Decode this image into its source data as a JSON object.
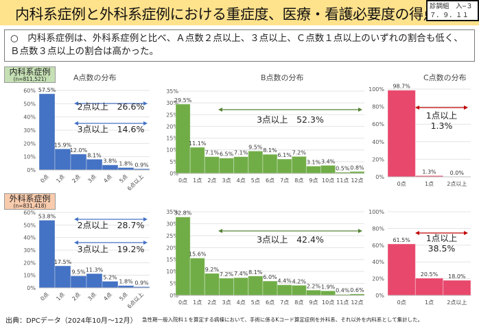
{
  "header": {
    "title": "内科系症例と外科系症例における重症度、医療・看護必要度の得点",
    "badge_line1": "診調組　入−３",
    "badge_line2": "７．９．１１"
  },
  "summary": "○　内科系症例は、外科系症例と比べ、Ａ点数２点以上、３点以上、Ｃ点数１点以上のいずれの割合も低く、Ｂ点数３点以上の割合は高かった。",
  "groups": [
    {
      "label": "内科系症例",
      "n": "(n=811,521)",
      "color": "#C5E0B4"
    },
    {
      "label": "外科系症例",
      "n": "(n=831,418)",
      "color": "#F8CBAD"
    }
  ],
  "footer": {
    "source": "出典：DPCデータ（2024年10月～12月）",
    "note": "急性期一般入院料１を算定する病棟において、手術に係るKコード算定症例を外科系、それ以外を内科系として集計した。"
  },
  "colors": {
    "A": "#4472C4",
    "B": "#70AD47",
    "C": "#E8486C",
    "B_arrow": "#548235",
    "C_arrow": "#C00000"
  },
  "chart_data": [
    {
      "id": "a1",
      "type": "bar",
      "title": "A点数の分布",
      "group": "内科系症例",
      "categories": [
        "0点",
        "1点",
        "2点",
        "3点",
        "4点",
        "5点",
        "6点以上"
      ],
      "values": [
        57.5,
        15.9,
        12.0,
        8.1,
        3.8,
        1.8,
        0.9
      ],
      "ylim": [
        0,
        60
      ],
      "ytick_step": 10,
      "color_key": "A",
      "annotations": [
        {
          "text": "2点以上　26.6%"
        },
        {
          "text": "3点以上　14.6%"
        }
      ]
    },
    {
      "id": "b1",
      "type": "bar",
      "title": "B点数の分布",
      "group": "内科系症例",
      "categories": [
        "0点",
        "1点",
        "2点",
        "3点",
        "4点",
        "5点",
        "6点",
        "7点",
        "8点",
        "9点",
        "10点",
        "11点",
        "12点"
      ],
      "values": [
        29.5,
        11.1,
        7.1,
        6.5,
        7.1,
        9.5,
        8.1,
        6.1,
        7.2,
        3.1,
        3.4,
        0.5,
        0.8
      ],
      "ylim": [
        0,
        35
      ],
      "ytick_step": 5,
      "color_key": "B",
      "annotations": [
        {
          "text": "3点以上　52.3%"
        }
      ]
    },
    {
      "id": "c1",
      "type": "bar",
      "title": "C点数の分布",
      "group": "内科系症例",
      "categories": [
        "0点",
        "1点",
        "2点以上"
      ],
      "values": [
        98.7,
        1.3,
        0.0
      ],
      "ylim": [
        0,
        100
      ],
      "ytick_step": 20,
      "color_key": "C",
      "annotations": [
        {
          "text": "1点以上",
          "text2": "1.3%"
        }
      ]
    },
    {
      "id": "a2",
      "type": "bar",
      "group": "外科系症例",
      "categories": [
        "0点",
        "1点",
        "2点",
        "3点",
        "4点",
        "5点",
        "6点以上"
      ],
      "values": [
        53.8,
        17.5,
        9.5,
        11.3,
        5.2,
        1.8,
        0.9
      ],
      "ylim": [
        0,
        60
      ],
      "ytick_step": 10,
      "color_key": "A",
      "annotations": [
        {
          "text": "2点以上　28.7%"
        },
        {
          "text": "3点以上　19.2%"
        }
      ]
    },
    {
      "id": "b2",
      "type": "bar",
      "group": "外科系症例",
      "categories": [
        "0点",
        "1点",
        "2点",
        "3点",
        "4点",
        "5点",
        "6点",
        "7点",
        "8点",
        "9点",
        "10点",
        "11点",
        "12点"
      ],
      "values": [
        32.8,
        15.6,
        9.2,
        7.2,
        7.4,
        8.1,
        6.0,
        4.4,
        4.2,
        2.2,
        1.9,
        0.4,
        0.6
      ],
      "ylim": [
        0,
        35
      ],
      "ytick_step": 5,
      "color_key": "B",
      "annotations": [
        {
          "text": "3点以上　42.4%"
        }
      ]
    },
    {
      "id": "c2",
      "type": "bar",
      "group": "外科系症例",
      "categories": [
        "0点",
        "1点",
        "2点以上"
      ],
      "values": [
        61.5,
        20.5,
        18.0
      ],
      "ylim": [
        0,
        100
      ],
      "ytick_step": 20,
      "color_key": "C",
      "annotations": [
        {
          "text": "1点以上",
          "text2": "38.5%"
        }
      ]
    }
  ]
}
